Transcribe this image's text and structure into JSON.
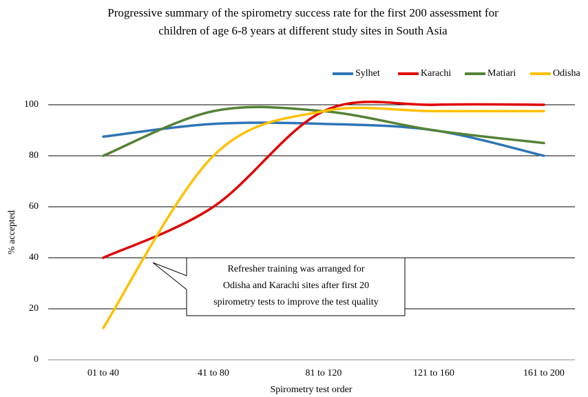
{
  "chart_data": {
    "type": "line",
    "title": [
      "Progressive summary  of the spirometry success rate for the first 200 assessment for",
      "children  of age 6-8 years at different  study sites in South Asia"
    ],
    "x_label": "Spirometry  test order",
    "y_label": "% accepted",
    "categories": [
      "01 to 40",
      "41 to 80",
      "81 to 120",
      "121 to 160",
      "161 to 200"
    ],
    "series": [
      {
        "name": "Sylhet",
        "color": "#2e75b6",
        "values": [
          87.5,
          92.5,
          92.5,
          90,
          80
        ]
      },
      {
        "name": "Karachi",
        "color": "#e00000",
        "values": [
          40,
          60,
          97.5,
          100,
          100
        ]
      },
      {
        "name": "Matiari",
        "color": "#548235",
        "values": [
          80,
          97.5,
          97.5,
          90,
          85
        ]
      },
      {
        "name": "Odisha",
        "color": "#ffc000",
        "values": [
          12.5,
          80,
          97.5,
          97.5,
          97.5
        ]
      }
    ],
    "ylim": [
      0,
      100
    ],
    "yticks": [
      0,
      20,
      40,
      60,
      80,
      100
    ],
    "grid": true,
    "legend": "top-right",
    "smooth": true,
    "annotation": [
      "Refresher  training  was arranged for",
      "Odisha and Karachi sites after first  20",
      "spirometry tests to improve the test quality"
    ]
  }
}
